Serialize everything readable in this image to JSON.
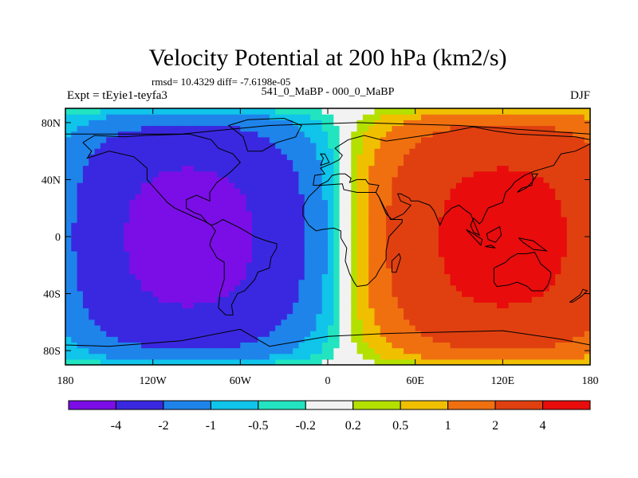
{
  "chart_data": {
    "type": "heatmap",
    "title": "Velocity Potential at 200 hPa (km2/s)",
    "stats": "rmsd= 10.4329 diff= -7.6198e-05",
    "left_label": "Expt = tEyie1-teyfa3",
    "center_label": "541_0_MaBP - 000_0_MaBP",
    "right_label": "DJF",
    "x_ticks": [
      "180",
      "120W",
      "60W",
      "0",
      "60E",
      "120E",
      "180"
    ],
    "x_tick_values": [
      -180,
      -120,
      -60,
      0,
      60,
      120,
      180
    ],
    "y_ticks": [
      "80N",
      "40N",
      "0",
      "40S",
      "80S"
    ],
    "y_tick_values": [
      80,
      40,
      0,
      -40,
      -80
    ],
    "xlim": [
      -180,
      180
    ],
    "ylim": [
      -90,
      90
    ],
    "colorbar": {
      "levels": [
        "-4",
        "-2",
        "-1",
        "-0.5",
        "-0.2",
        "0.2",
        "0.5",
        "1",
        "2",
        "4"
      ],
      "colors": [
        "#7b0ee6",
        "#3a28e0",
        "#1e84ea",
        "#10c4ea",
        "#22e4c0",
        "#f2f2f2",
        "#b4e000",
        "#f0c000",
        "#f07010",
        "#e04010",
        "#e80c0c"
      ]
    },
    "field": {
      "negative_center": [
        -95,
        0
      ],
      "positive_center": [
        120,
        0
      ],
      "max_magnitude": 5
    }
  }
}
